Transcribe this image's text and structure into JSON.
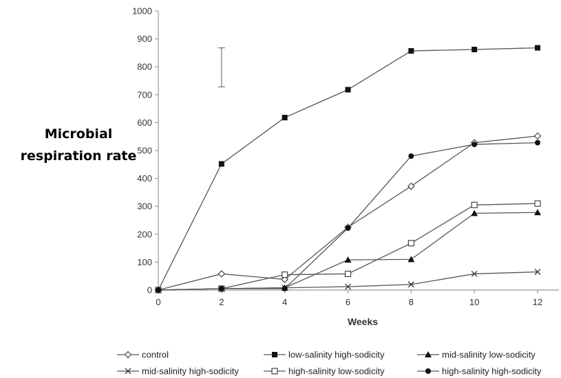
{
  "chart_data": {
    "type": "line",
    "title": "",
    "xlabel": "Weeks",
    "ylabel_lines": [
      "Microbial",
      "respiration rate"
    ],
    "x": [
      0,
      2,
      4,
      6,
      8,
      10,
      12
    ],
    "x_ticks": [
      "0",
      "2",
      "4",
      "6",
      "8",
      "10",
      "12"
    ],
    "y_ticks": [
      "0",
      "100",
      "200",
      "300",
      "400",
      "500",
      "600",
      "700",
      "800",
      "900",
      "1000"
    ],
    "xlim": [
      0,
      12
    ],
    "ylim": [
      0,
      1000
    ],
    "grid": false,
    "legend_position": "bottom",
    "error_bar": {
      "x": 2,
      "low": 728,
      "high": 868
    },
    "series": [
      {
        "name": "control",
        "marker": "diamond-open",
        "values": [
          0,
          58,
          38,
          225,
          372,
          528,
          552
        ]
      },
      {
        "name": "low-salinity high-sodicity",
        "marker": "square-filled",
        "values": [
          0,
          452,
          618,
          718,
          857,
          862,
          868
        ]
      },
      {
        "name": "mid-salinity low-sodicity",
        "marker": "triangle-filled",
        "values": [
          0,
          5,
          8,
          108,
          110,
          275,
          278
        ]
      },
      {
        "name": "mid-salinity high-sodicity",
        "marker": "x",
        "values": [
          0,
          5,
          8,
          12,
          20,
          58,
          65
        ]
      },
      {
        "name": "high-salinity low-sodicity",
        "marker": "square-open",
        "values": [
          0,
          5,
          55,
          58,
          168,
          305,
          310
        ]
      },
      {
        "name": "high-salinity high-sodicity",
        "marker": "circle-filled",
        "values": [
          0,
          5,
          5,
          222,
          480,
          522,
          528
        ]
      }
    ]
  }
}
